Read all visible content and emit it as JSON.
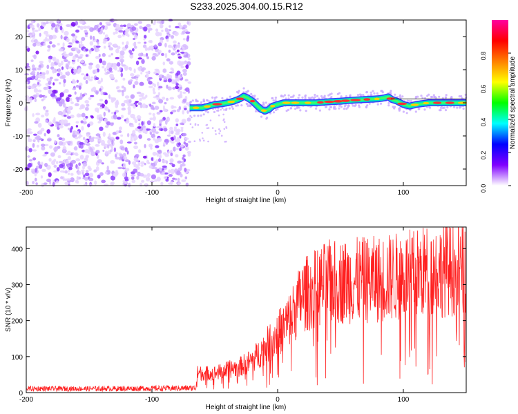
{
  "title": "S233.2025.304.00.15.R12",
  "chart_data": [
    {
      "type": "heatmap",
      "xlabel": "Height of straight line (km)",
      "ylabel": "Frequency (Hz)",
      "xlim": [
        -200,
        150
      ],
      "ylim": [
        -25,
        25
      ],
      "x_ticks": [
        -200,
        -100,
        0,
        100
      ],
      "x_tick_labels": [
        "-200",
        "-100",
        "0",
        "100"
      ],
      "y_ticks": [
        -20,
        -10,
        0,
        10,
        20
      ],
      "y_tick_labels": [
        "-20",
        "-10",
        "0",
        "10",
        "20"
      ],
      "noise_region_x": [
        -200,
        -70
      ],
      "signal_track": {
        "x": [
          -70,
          -65,
          -60,
          -55,
          -50,
          -45,
          -40,
          -35,
          -30,
          -27,
          -24,
          -20,
          -16,
          -13,
          -10,
          -7,
          -4,
          0,
          5,
          10,
          20,
          30,
          40,
          50,
          60,
          70,
          80,
          85,
          88,
          91,
          95,
          100,
          105,
          110,
          120,
          130,
          140,
          150
        ],
        "frequency": [
          -1.5,
          -1.5,
          -1.5,
          -1.0,
          -0.5,
          -0.3,
          0.0,
          0.5,
          1.2,
          2.0,
          1.5,
          0.5,
          -1.0,
          -2.0,
          -2.5,
          -2.0,
          -1.0,
          -0.5,
          0.0,
          0.0,
          0.0,
          0.0,
          0.3,
          0.5,
          0.8,
          1.0,
          1.2,
          1.5,
          1.8,
          1.0,
          0.5,
          -0.5,
          -1.0,
          -0.5,
          0.0,
          0.0,
          0.0,
          0.0
        ]
      },
      "colorbar": {
        "label": "Normalized spectral amplitude",
        "range": [
          0.0,
          1.0
        ],
        "ticks": [
          0.0,
          0.2,
          0.4,
          0.6,
          0.8
        ],
        "tick_labels": [
          "0.0",
          "0.2",
          "0.4",
          "0.6",
          "0.8"
        ],
        "colors": [
          "#ffffff",
          "#8000ff",
          "#0000ff",
          "#00ffff",
          "#00ff00",
          "#ffff00",
          "#ff8000",
          "#ff0000",
          "#ff00a0"
        ]
      }
    },
    {
      "type": "line",
      "xlabel": "Height of straight line (km)",
      "ylabel": "SNR (10 * v/v)",
      "xlim": [
        -200,
        150
      ],
      "ylim": [
        0,
        460
      ],
      "x_ticks": [
        -200,
        -100,
        0,
        100
      ],
      "x_tick_labels": [
        "-200",
        "-100",
        "0",
        "100"
      ],
      "y_ticks": [
        0,
        100,
        200,
        300,
        400
      ],
      "y_tick_labels": [
        "0",
        "100",
        "200",
        "300",
        "400"
      ],
      "series": [
        {
          "name": "SNR",
          "color": "#ff2020",
          "envelope_x": [
            -200,
            -150,
            -100,
            -65,
            -64,
            -50,
            -30,
            -20,
            -10,
            0,
            10,
            20,
            30,
            40,
            60,
            80,
            100,
            120,
            150
          ],
          "envelope_y": [
            12,
            12,
            13,
            14,
            60,
            60,
            80,
            100,
            140,
            180,
            230,
            300,
            320,
            340,
            345,
            350,
            360,
            375,
            385
          ]
        }
      ]
    }
  ]
}
